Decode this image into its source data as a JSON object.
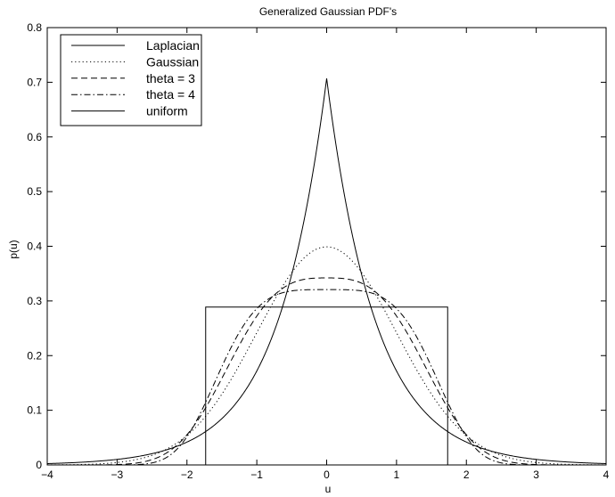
{
  "chart_data": {
    "type": "line",
    "title": "Generalized Gaussian PDF's",
    "xlabel": "u",
    "ylabel": "p(u)",
    "xlim": [
      -4,
      4
    ],
    "ylim": [
      0,
      0.8
    ],
    "xticks": [
      -4,
      -3,
      -2,
      -1,
      0,
      1,
      2,
      3,
      4
    ],
    "yticks": [
      0,
      0.1,
      0.2,
      0.3,
      0.4,
      0.5,
      0.6,
      0.7,
      0.8
    ],
    "grid": false,
    "legend_position": "top-left",
    "series": [
      {
        "name": "Laplacian",
        "style": "solid",
        "theta": 1
      },
      {
        "name": "Gaussian",
        "style": "dotted",
        "theta": 2
      },
      {
        "name": "theta = 3",
        "style": "dashed",
        "theta": 3
      },
      {
        "name": "theta = 4",
        "style": "dashdot",
        "theta": 4
      },
      {
        "name": "uniform",
        "style": "solid",
        "bounds": [
          -1.732,
          1.732
        ],
        "height": 0.2887
      }
    ],
    "line_color": "#000000"
  }
}
